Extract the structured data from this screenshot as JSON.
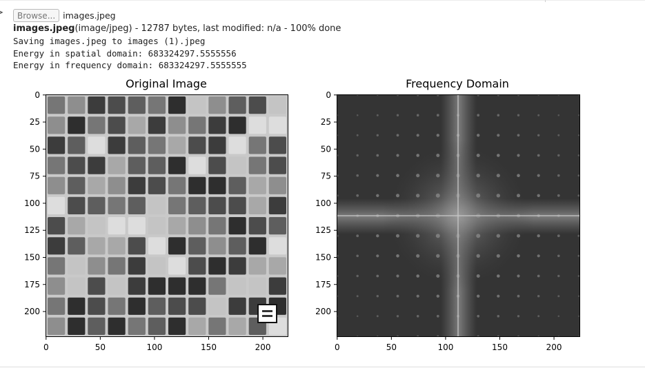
{
  "upload": {
    "browse_label": "Browse...",
    "selected_file": "images.jpeg"
  },
  "status": {
    "file_name": "images.jpeg",
    "details": "(image/jpeg) - 12787 bytes, last modified: n/a - 100% done"
  },
  "output": {
    "lines": [
      "Saving images.jpeg to images (1).jpeg",
      "Energy in spatial domain: 683324297.5555556",
      "Energy in frequency domain: 683324297.5555555"
    ]
  },
  "figure": {
    "plots": [
      {
        "title": "Original Image",
        "x_ticks": [
          "0",
          "50",
          "100",
          "150",
          "200"
        ],
        "y_ticks": [
          "0",
          "25",
          "50",
          "75",
          "100",
          "125",
          "150",
          "175",
          "200"
        ]
      },
      {
        "title": "Frequency Domain",
        "x_ticks": [
          "0",
          "50",
          "100",
          "150",
          "200"
        ],
        "y_ticks": [
          "0",
          "25",
          "50",
          "75",
          "100",
          "125",
          "150",
          "175",
          "200"
        ]
      }
    ]
  },
  "colors": {
    "text": "#212121",
    "frame": "#000000"
  }
}
